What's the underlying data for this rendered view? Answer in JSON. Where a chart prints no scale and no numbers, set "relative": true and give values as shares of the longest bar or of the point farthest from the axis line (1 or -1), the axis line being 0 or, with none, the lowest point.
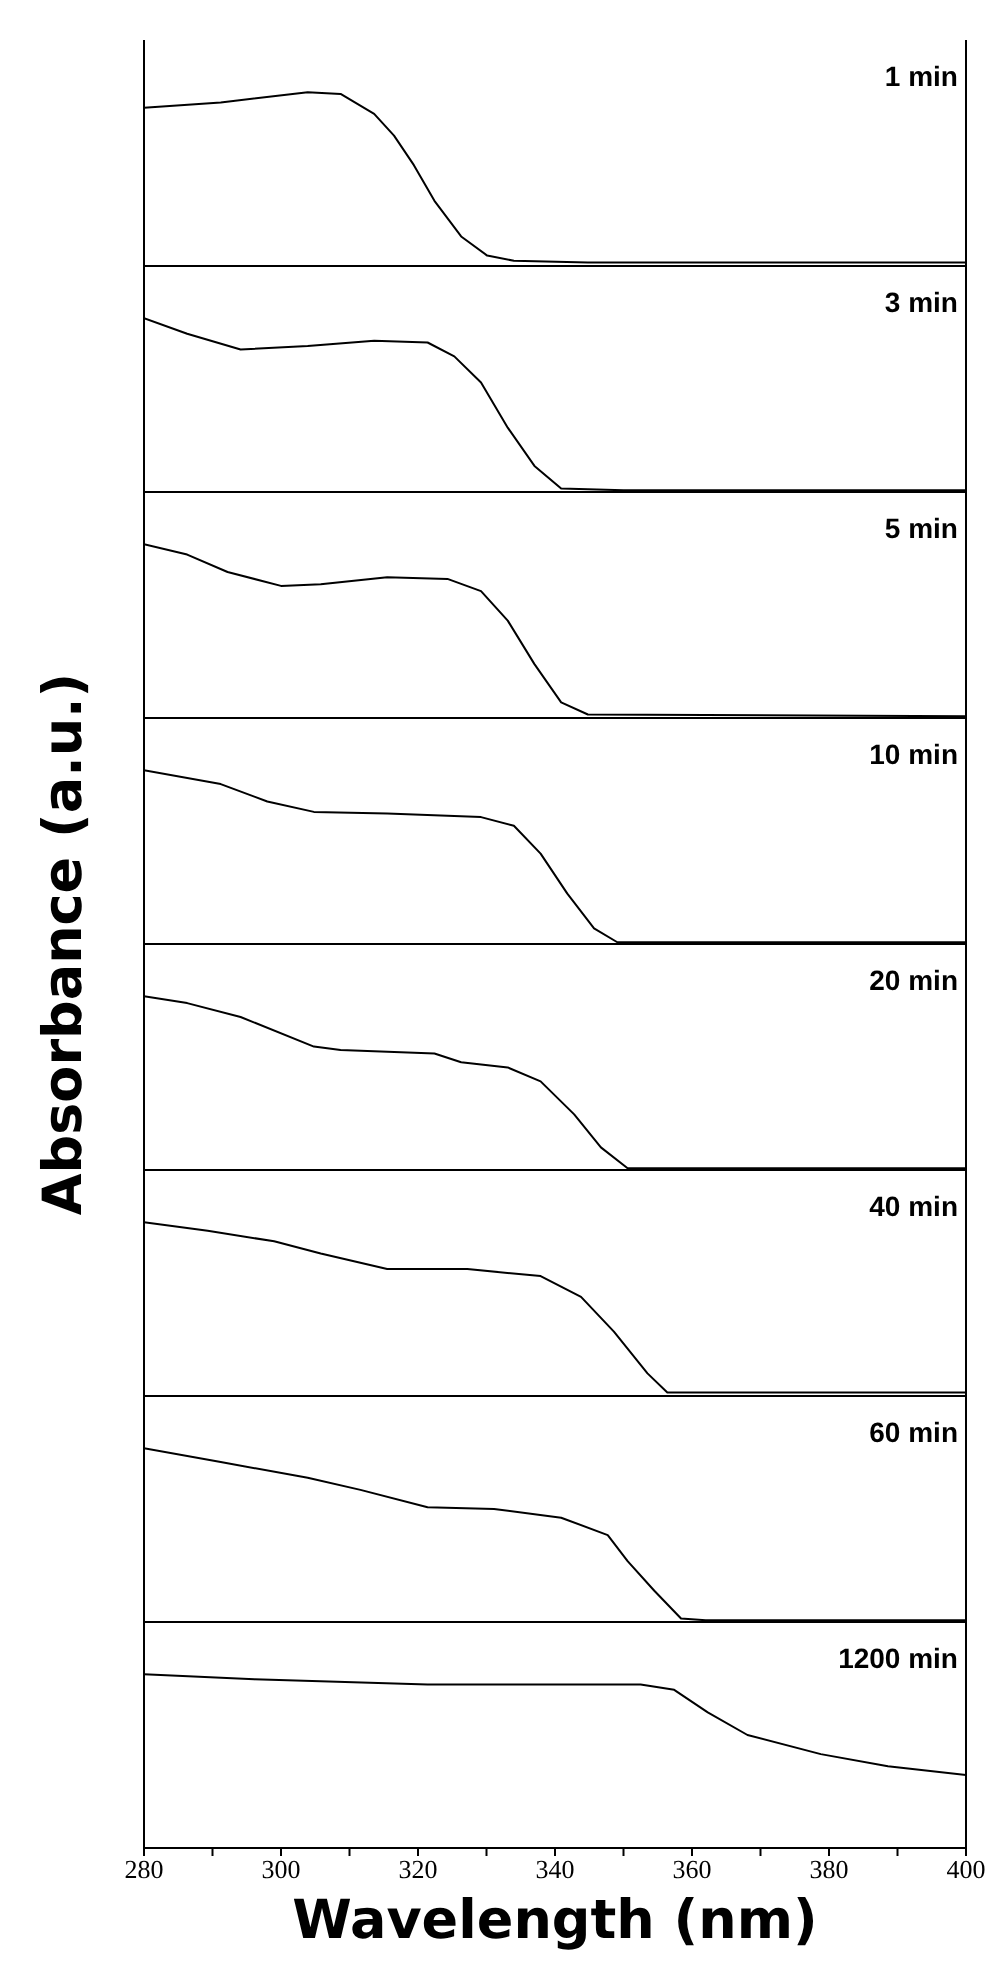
{
  "chart_data": [
    {
      "type": "line",
      "annotations": [
        "1 min"
      ],
      "relative": true,
      "tick_labels": false,
      "xlim": [
        280,
        400
      ],
      "color": "#000000",
      "x": [
        280,
        291.2,
        303.9,
        308.7,
        313.6,
        316.5,
        319.4,
        322.4,
        326.3,
        330.1,
        334,
        344.8,
        400
      ],
      "values": [
        0.91,
        0.94,
        1.0,
        0.99,
        0.875,
        0.75,
        0.58,
        0.375,
        0.17,
        0.06,
        0.03,
        0.02,
        0.02
      ]
    },
    {
      "type": "line",
      "annotations": [
        "3 min"
      ],
      "relative": true,
      "tick_labels": false,
      "xlim": [
        280,
        400
      ],
      "color": "#000000",
      "x": [
        280,
        286.3,
        294.1,
        303.9,
        313.6,
        321.4,
        325.3,
        329.2,
        333.1,
        337,
        340.9,
        350,
        400
      ],
      "values": [
        1.0,
        0.91,
        0.82,
        0.84,
        0.87,
        0.86,
        0.78,
        0.63,
        0.37,
        0.15,
        0.02,
        0.01,
        0.01
      ]
    },
    {
      "type": "line",
      "annotations": [
        "5 min"
      ],
      "relative": true,
      "tick_labels": false,
      "xlim": [
        280,
        400
      ],
      "color": "#000000",
      "x": [
        280,
        286.3,
        292.2,
        300,
        305.8,
        315.5,
        324.3,
        329.2,
        333.1,
        337,
        340.9,
        344.8,
        400
      ],
      "values": [
        1.0,
        0.94,
        0.84,
        0.76,
        0.77,
        0.81,
        0.8,
        0.73,
        0.56,
        0.31,
        0.09,
        0.02,
        0.01
      ]
    },
    {
      "type": "line",
      "annotations": [
        "10 min"
      ],
      "relative": true,
      "tick_labels": false,
      "xlim": [
        280,
        400
      ],
      "color": "#000000",
      "x": [
        280,
        291.2,
        298,
        304.8,
        315.5,
        329.2,
        334,
        337.9,
        341.8,
        345.7,
        349.1,
        400
      ],
      "values": [
        1.0,
        0.92,
        0.82,
        0.76,
        0.75,
        0.73,
        0.68,
        0.52,
        0.29,
        0.09,
        0.01,
        0.01
      ]
    },
    {
      "type": "line",
      "ylabel": "Absorbance (a.u.)",
      "annotations": [
        "20 min"
      ],
      "relative": true,
      "tick_labels": false,
      "xlim": [
        280,
        400
      ],
      "color": "#000000",
      "x": [
        280,
        286.3,
        294.1,
        304.8,
        308.7,
        322.4,
        326.3,
        333.1,
        337.9,
        342.8,
        346.7,
        350.6,
        400
      ],
      "values": [
        1.0,
        0.96,
        0.88,
        0.71,
        0.69,
        0.67,
        0.62,
        0.59,
        0.51,
        0.32,
        0.13,
        0.01,
        0.01
      ]
    },
    {
      "type": "line",
      "annotations": [
        "40 min"
      ],
      "relative": true,
      "tick_labels": false,
      "xlim": [
        280,
        400
      ],
      "color": "#000000",
      "x": [
        280,
        289.3,
        299,
        305.8,
        315.5,
        327.2,
        337.9,
        343.8,
        348.6,
        353.5,
        356.4,
        400
      ],
      "values": [
        1.0,
        0.95,
        0.89,
        0.82,
        0.73,
        0.73,
        0.69,
        0.57,
        0.37,
        0.13,
        0.02,
        0.02
      ]
    },
    {
      "type": "line",
      "annotations": [
        "60 min"
      ],
      "relative": true,
      "tick_labels": false,
      "xlim": [
        280,
        400
      ],
      "color": "#000000",
      "x": [
        280,
        291.2,
        303.9,
        311.6,
        321.4,
        331.1,
        340.9,
        347.7,
        350.6,
        354.5,
        358.4,
        362,
        400
      ],
      "values": [
        1.0,
        0.92,
        0.83,
        0.76,
        0.66,
        0.65,
        0.6,
        0.5,
        0.35,
        0.18,
        0.02,
        0.01,
        0.01
      ]
    },
    {
      "type": "line",
      "xlabel": "Wavelength (nm)",
      "annotations": [
        "1200 min"
      ],
      "relative": true,
      "tick_labels": "x",
      "xlim": [
        280,
        400
      ],
      "xticks": [
        280,
        {
          "value": 290,
          "label": null
        },
        300,
        {
          "value": 310,
          "label": null
        },
        320,
        {
          "value": 330,
          "label": null
        },
        340,
        {
          "value": 350,
          "label": null
        },
        360,
        {
          "value": 370,
          "label": null
        },
        380,
        {
          "value": 390,
          "label": null
        },
        400
      ],
      "color": "#000000",
      "x": [
        280,
        296.1,
        321.4,
        352.5,
        357.4,
        362.3,
        368.1,
        378.8,
        388.6,
        400
      ],
      "values": [
        1.0,
        0.97,
        0.94,
        0.94,
        0.91,
        0.78,
        0.65,
        0.54,
        0.47,
        0.42
      ]
    }
  ]
}
